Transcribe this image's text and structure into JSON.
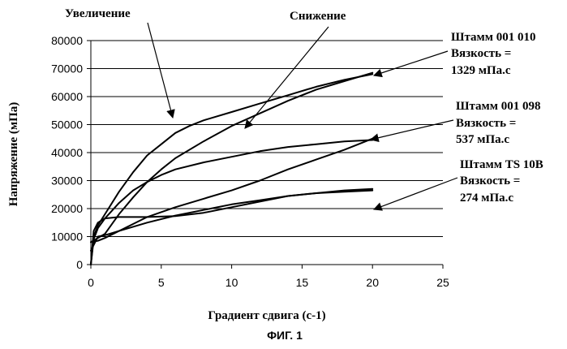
{
  "chart_data": {
    "type": "line",
    "xlabel": "Градиент сдвига (с-1)",
    "ylabel": "Напряжение (мПа)",
    "caption": "ФИГ. 1",
    "xlim": [
      0,
      25
    ],
    "ylim": [
      0,
      80000
    ],
    "x_ticks": [
      0,
      5,
      10,
      15,
      20,
      25
    ],
    "y_ticks": [
      0,
      10000,
      20000,
      30000,
      40000,
      50000,
      60000,
      70000,
      80000
    ],
    "grid": "horizontal",
    "annotations": {
      "increase": "Увеличение",
      "decrease": "Снижение"
    },
    "strain_labels": [
      {
        "line1": "Штамм 001 010",
        "line2": "Вязкость =",
        "line3": "1329 мПа.с"
      },
      {
        "line1": "Штамм 001 098",
        "line2": "Вязкость =",
        "line3": "537 мПа.с"
      },
      {
        "line1": "Штамм TS 10B",
        "line2": "Вязкость =",
        "line3": "274 мПа.с"
      }
    ],
    "series": [
      {
        "x": [
          0,
          0.2,
          0.5,
          1,
          2,
          3,
          4,
          5,
          6,
          7,
          8,
          10,
          12,
          14,
          16,
          18,
          20
        ],
        "y": [
          0,
          10000,
          14000,
          18000,
          26000,
          33000,
          39000,
          43000,
          47000,
          49500,
          51500,
          54500,
          57500,
          60500,
          63500,
          66000,
          68000
        ]
      },
      {
        "x": [
          0,
          1,
          2,
          3,
          4,
          5,
          6,
          8,
          10,
          12,
          14,
          16,
          18,
          20
        ],
        "y": [
          8000,
          11000,
          18000,
          24000,
          29500,
          34000,
          38000,
          44000,
          49500,
          54000,
          58500,
          62500,
          65500,
          68500
        ]
      },
      {
        "x": [
          0,
          0.2,
          0.5,
          1,
          2,
          3,
          4,
          5,
          6,
          8,
          10,
          12,
          14,
          16,
          18,
          20
        ],
        "y": [
          0,
          9000,
          13000,
          16500,
          22000,
          26500,
          29500,
          32000,
          34000,
          36500,
          38500,
          40500,
          42000,
          43000,
          44000,
          44500
        ]
      },
      {
        "x": [
          0,
          0.5,
          1,
          2,
          4,
          6,
          8,
          10,
          12,
          14,
          16,
          18,
          20
        ],
        "y": [
          8000,
          8500,
          9500,
          12000,
          17000,
          20500,
          23500,
          26500,
          30000,
          34000,
          37500,
          41000,
          45000
        ]
      },
      {
        "x": [
          0,
          0.2,
          0.5,
          1,
          2,
          4,
          6,
          8,
          10,
          12,
          14,
          16,
          18,
          20
        ],
        "y": [
          0,
          12000,
          15000,
          16500,
          17000,
          17000,
          17300,
          18500,
          20500,
          22500,
          24500,
          25500,
          26000,
          26500
        ]
      },
      {
        "x": [
          0,
          0.5,
          1,
          2,
          3,
          4,
          6,
          8,
          10,
          12,
          14,
          16,
          18,
          20
        ],
        "y": [
          5000,
          10000,
          10500,
          12000,
          13500,
          15000,
          17500,
          19500,
          21500,
          23000,
          24500,
          25500,
          26500,
          27000
        ]
      }
    ]
  }
}
